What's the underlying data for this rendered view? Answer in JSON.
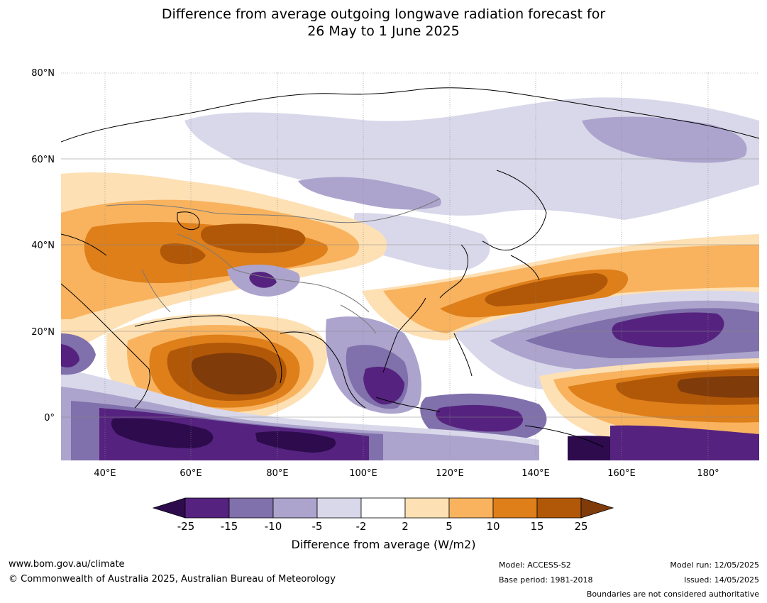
{
  "title_line1": "Difference from average outgoing longwave radiation forecast for",
  "title_line2": "26 May to 1 June 2025",
  "lat_labels": [
    "80°N",
    "60°N",
    "40°N",
    "20°N",
    "0°"
  ],
  "lon_labels": [
    "40°E",
    "60°E",
    "80°E",
    "100°E",
    "120°E",
    "140°E",
    "160°E",
    "180°"
  ],
  "colorbar": {
    "ticks": [
      "-25",
      "-15",
      "-10",
      "-5",
      "-2",
      "2",
      "5",
      "10",
      "15",
      "25"
    ],
    "colors": [
      "#2d0b4d",
      "#55237f",
      "#8070ab",
      "#aca4cd",
      "#d9d8ea",
      "#ffffff",
      "#fde0b4",
      "#f9b35f",
      "#de7f1a",
      "#b15808",
      "#7f3b0a"
    ],
    "label": "Difference from average (W/m2)"
  },
  "footer": {
    "url": "www.bom.gov.au/climate",
    "copyright": "© Commonwealth of Australia 2025, Australian Bureau of Meteorology",
    "model": "Model: ACCESS-S2",
    "base_period": "Base period: 1981-2018",
    "model_run": "Model run: 12/05/2025",
    "issued": "Issued: 14/05/2025",
    "boundaries": "Boundaries are not considered authoritative"
  }
}
